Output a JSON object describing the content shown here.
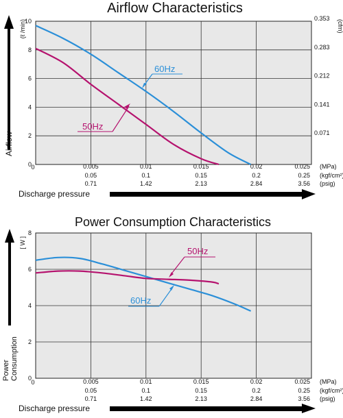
{
  "chart_data": [
    {
      "type": "line",
      "title": "Airflow Characteristics",
      "ylabel": "Airflow",
      "y_unit_left": "(ℓ /min)",
      "y_unit_right": "(cfm)",
      "xlabel": "Discharge pressure",
      "xlim": [
        0,
        0.025
      ],
      "ylim": [
        0,
        10
      ],
      "yticks": [
        "10",
        "8",
        "6",
        "4",
        "2",
        "0"
      ],
      "yticks_right": [
        "0.353",
        "0.283",
        "0.212",
        "0.141",
        "0.071"
      ],
      "x_tick_rows": [
        {
          "unit": "(MPa)",
          "labels": [
            "0.005",
            "0.01",
            "0.015",
            "0.02",
            "0.025"
          ]
        },
        {
          "unit": "(kgf/cm²)",
          "labels": [
            "0.05",
            "0.1",
            "0.15",
            "0.2",
            "0.25"
          ]
        },
        {
          "unit": "(psig)",
          "labels": [
            "0.71",
            "1.42",
            "2.13",
            "2.84",
            "3.56"
          ]
        }
      ],
      "x": [
        0,
        0.0025,
        0.005,
        0.0075,
        0.01,
        0.0125,
        0.015,
        0.0175,
        0.0195
      ],
      "grid": true,
      "series": [
        {
          "name": "60Hz",
          "color": "#2b8fd8",
          "values": [
            9.7,
            8.8,
            7.7,
            6.4,
            5.1,
            3.7,
            2.2,
            0.8,
            0.0
          ],
          "x": [
            0,
            0.0025,
            0.005,
            0.0075,
            0.01,
            0.0125,
            0.015,
            0.0175,
            0.0195
          ]
        },
        {
          "name": "50Hz",
          "color": "#b5126e",
          "values": [
            8.1,
            7.1,
            5.6,
            4.2,
            2.8,
            1.4,
            0.4,
            0.0
          ],
          "x": [
            0,
            0.0025,
            0.005,
            0.0075,
            0.01,
            0.0125,
            0.015,
            0.0166
          ]
        }
      ]
    },
    {
      "type": "line",
      "title": "Power Consumption Characteristics",
      "ylabel": "Power\nConsumption",
      "y_unit_left": "[ W ]",
      "xlabel": "Discharge pressure",
      "xlim": [
        0,
        0.025
      ],
      "ylim": [
        0,
        8
      ],
      "yticks": [
        "8",
        "6",
        "4",
        "2",
        "0"
      ],
      "x_tick_rows": [
        {
          "unit": "(MPa)",
          "labels": [
            "0.005",
            "0.01",
            "0.015",
            "0.02",
            "0.025"
          ]
        },
        {
          "unit": "(kgf/cm²)",
          "labels": [
            "0.1",
            "0.15",
            "0.2",
            "0.25"
          ],
          "lead": "0.05"
        },
        {
          "unit": "(psig)",
          "labels": [
            "0.71",
            "1.42",
            "2.13",
            "2.84",
            "3.56"
          ]
        }
      ],
      "grid": true,
      "series": [
        {
          "name": "60Hz",
          "color": "#2b8fd8",
          "x": [
            0,
            0.002,
            0.004,
            0.006,
            0.008,
            0.01,
            0.012,
            0.014,
            0.016,
            0.018,
            0.0195
          ],
          "values": [
            6.5,
            6.65,
            6.6,
            6.3,
            5.95,
            5.6,
            5.25,
            4.9,
            4.55,
            4.1,
            3.7
          ]
        },
        {
          "name": "50Hz",
          "color": "#b5126e",
          "x": [
            0,
            0.002,
            0.004,
            0.006,
            0.008,
            0.01,
            0.012,
            0.014,
            0.016,
            0.0166
          ],
          "values": [
            5.8,
            5.9,
            5.9,
            5.8,
            5.65,
            5.5,
            5.45,
            5.4,
            5.3,
            5.2
          ]
        }
      ]
    }
  ]
}
